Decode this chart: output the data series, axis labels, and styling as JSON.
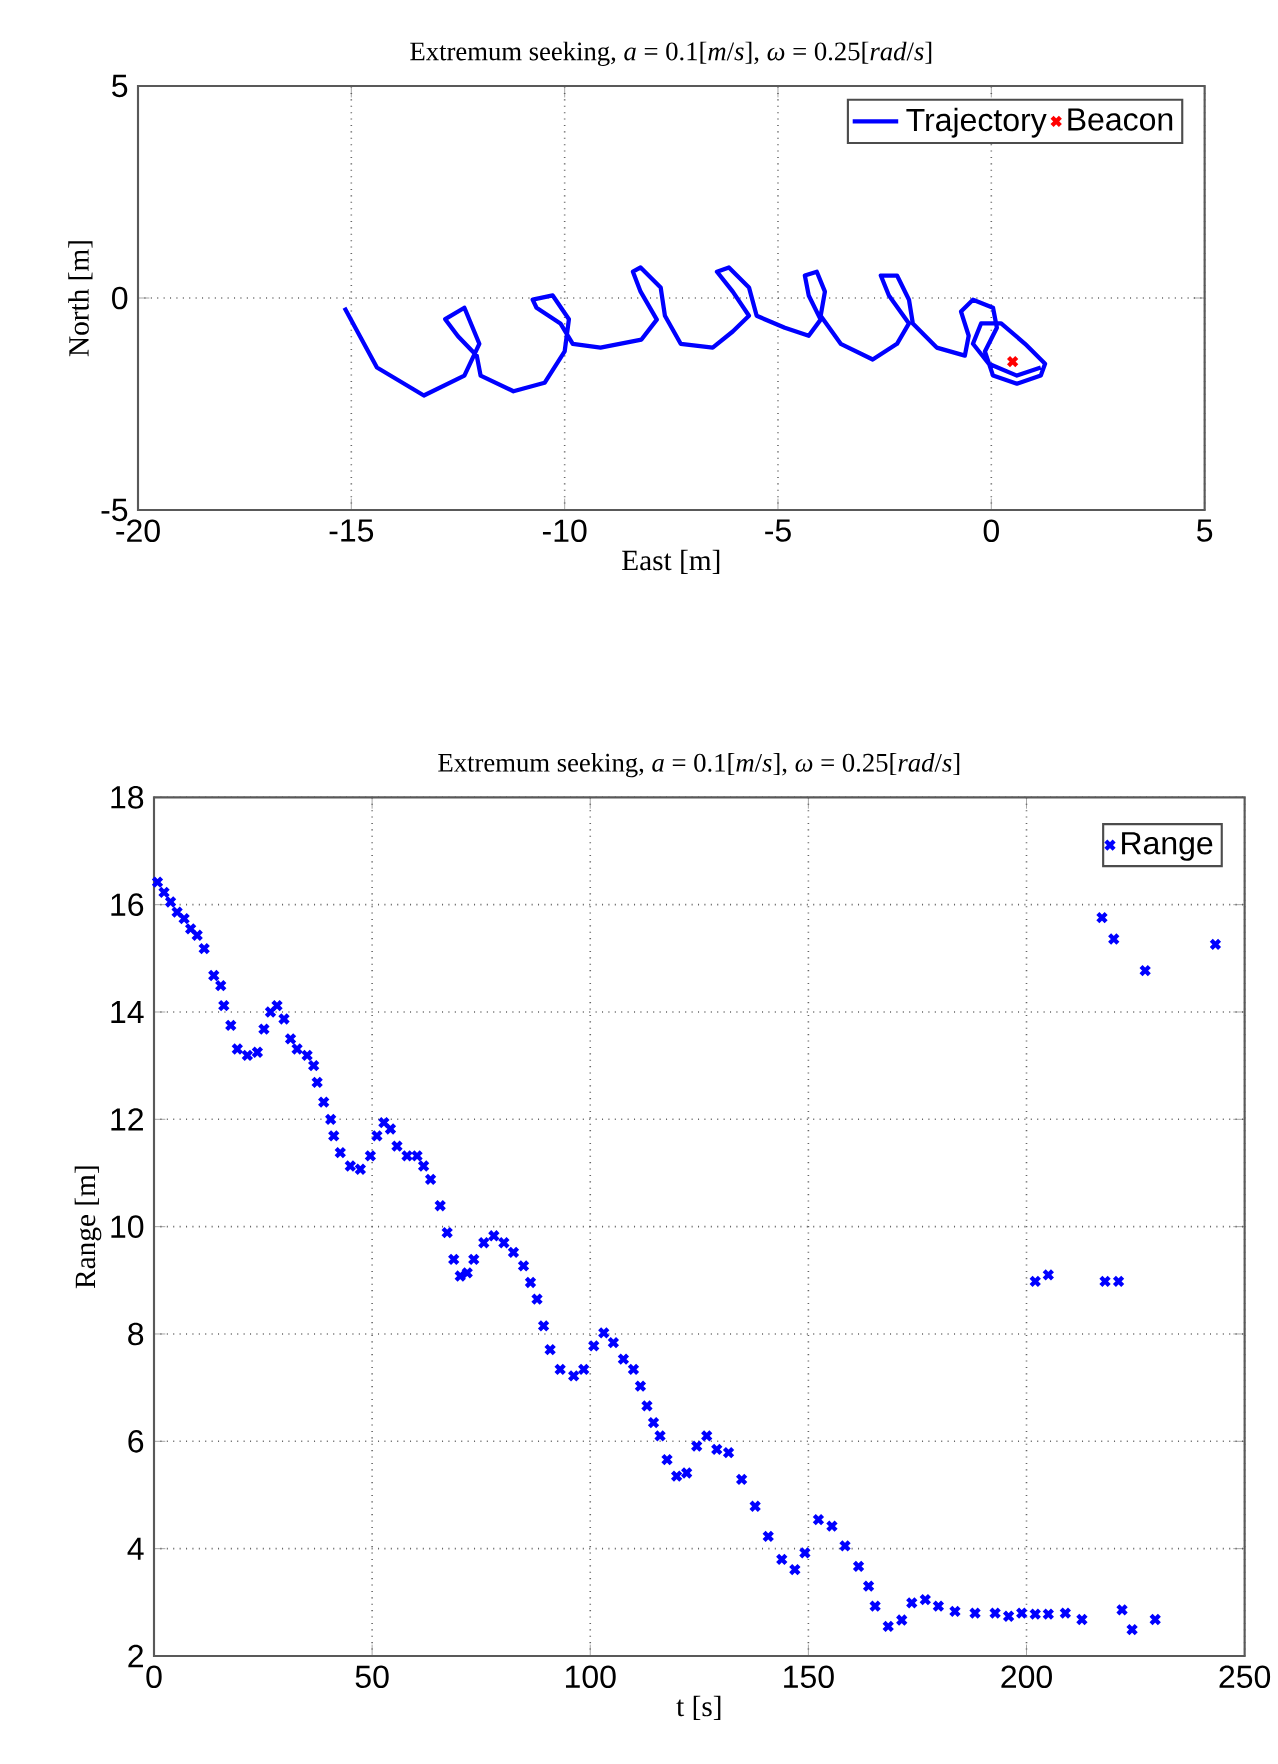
{
  "chart_data": [
    {
      "type": "line",
      "title": "Extremum seeking, *a* = 0.1[*m*/*s*], *ω* = 0.25[*rad*/*s*]",
      "xlabel": "East [m]",
      "ylabel": "North [m]",
      "xlim": [
        -20,
        5
      ],
      "ylim": [
        -5,
        5
      ],
      "xticks": [
        -20,
        -15,
        -10,
        -5,
        0,
        5
      ],
      "yticks": [
        -5,
        0,
        5
      ],
      "grid": true,
      "legend": "top right",
      "series": [
        {
          "name": "Trajectory",
          "color": "#0000ff",
          "marker": "none",
          "x": [
            -15.16,
            -14.4,
            -13.3,
            -12.35,
            -12.0,
            -12.35,
            -12.8,
            -12.5,
            -12.06,
            -11.97,
            -11.2,
            -10.47,
            -10.0,
            -9.9,
            -10.28,
            -10.75,
            -10.66,
            -10.1,
            -9.81,
            -9.16,
            -8.2,
            -7.84,
            -8.22,
            -8.4,
            -8.22,
            -7.75,
            -7.65,
            -7.28,
            -6.53,
            -6.06,
            -5.68,
            -6.06,
            -6.43,
            -6.15,
            -5.68,
            -5.5,
            -4.84,
            -4.28,
            -4.0,
            -4.28,
            -4.37,
            -4.09,
            -3.9,
            -4.0,
            -3.53,
            -2.78,
            -2.21,
            -1.93,
            -2.4,
            -2.59,
            -2.21,
            -1.93,
            -1.84,
            -1.28,
            -0.62,
            -0.53,
            -0.71,
            -0.43,
            0.04,
            0.13,
            -0.15,
            0.04,
            0.6,
            1.16,
            1.26,
            0.79,
            0.23,
            -0.24,
            -0.43,
            -0.06,
            0.6,
            1.16
          ],
          "values": [
            -0.23,
            -1.64,
            -2.3,
            -1.83,
            -1.08,
            -0.23,
            -0.5,
            -0.9,
            -1.36,
            -1.83,
            -2.2,
            -2.0,
            -1.26,
            -0.5,
            0.06,
            -0.04,
            -0.23,
            -0.6,
            -1.08,
            -1.17,
            -0.98,
            -0.51,
            0.15,
            0.62,
            0.72,
            0.25,
            -0.42,
            -1.08,
            -1.17,
            -0.79,
            -0.42,
            0.15,
            0.62,
            0.72,
            0.25,
            -0.42,
            -0.7,
            -0.89,
            -0.51,
            0.06,
            0.53,
            0.62,
            0.15,
            -0.42,
            -1.08,
            -1.45,
            -1.08,
            -0.6,
            0.06,
            0.53,
            0.53,
            -0.04,
            -0.6,
            -1.17,
            -1.36,
            -0.89,
            -0.32,
            -0.04,
            -0.23,
            -0.7,
            -1.26,
            -1.83,
            -2.02,
            -1.83,
            -1.55,
            -1.08,
            -0.6,
            -0.6,
            -1.08,
            -1.55,
            -1.83,
            -1.64
          ]
        },
        {
          "name": "Beacon",
          "type": "scatter",
          "color": "#ff0000",
          "marker": "cross",
          "x": [
            0.5
          ],
          "values": [
            -1.5
          ]
        }
      ]
    },
    {
      "type": "scatter",
      "title": "Extremum seeking, *a* = 0.1[*m*/*s*], *ω* = 0.25[*rad*/*s*]",
      "xlabel": "t [s]",
      "ylabel": "Range [m]",
      "xlim": [
        0,
        250
      ],
      "ylim": [
        2,
        18
      ],
      "xticks": [
        0,
        50,
        100,
        150,
        200,
        250
      ],
      "yticks": [
        2,
        4,
        6,
        8,
        10,
        12,
        14,
        16,
        18
      ],
      "grid": true,
      "legend": "top right",
      "series": [
        {
          "name": "Range",
          "color": "#0000ff",
          "marker": "cross",
          "x": [
            0.8,
            2.3,
            3.8,
            5.3,
            6.9,
            8.4,
            9.9,
            11.5,
            13.7,
            15.3,
            16.0,
            17.6,
            19.1,
            21.4,
            23.7,
            25.2,
            26.7,
            28.2,
            29.8,
            31.3,
            32.8,
            35.1,
            36.6,
            37.4,
            38.9,
            40.5,
            41.2,
            42.7,
            45.0,
            47.3,
            49.6,
            51.1,
            52.7,
            54.2,
            55.7,
            58.0,
            60.3,
            61.8,
            63.4,
            65.6,
            67.2,
            68.7,
            70.2,
            71.8,
            73.3,
            75.6,
            77.9,
            80.2,
            82.4,
            84.7,
            86.3,
            87.8,
            89.3,
            90.8,
            93.1,
            96.2,
            98.5,
            100.8,
            103.1,
            105.3,
            107.6,
            109.9,
            111.5,
            113.0,
            114.5,
            116.0,
            117.6,
            119.8,
            122.1,
            124.4,
            126.7,
            129.0,
            131.7,
            134.7,
            137.8,
            140.8,
            143.9,
            146.9,
            149.2,
            152.3,
            155.4,
            158.4,
            161.5,
            163.8,
            165.3,
            168.3,
            171.4,
            173.7,
            176.8,
            179.8,
            183.6,
            188.2,
            192.8,
            195.9,
            198.9,
            202.0,
            205.0,
            208.9,
            212.7,
            221.9,
            224.2,
            229.5,
            202.0,
            205.0,
            218.0,
            221.1,
            217.3,
            220.0,
            227.2,
            243.3
          ],
          "values": [
            16.42,
            16.23,
            16.05,
            15.86,
            15.74,
            15.55,
            15.43,
            15.18,
            14.68,
            14.49,
            14.12,
            13.75,
            13.31,
            13.19,
            13.25,
            13.68,
            14.0,
            14.12,
            13.87,
            13.5,
            13.31,
            13.19,
            13.0,
            12.69,
            12.32,
            12.0,
            11.69,
            11.38,
            11.13,
            11.07,
            11.32,
            11.69,
            11.94,
            11.82,
            11.5,
            11.32,
            11.32,
            11.13,
            10.88,
            10.39,
            9.89,
            9.39,
            9.08,
            9.14,
            9.39,
            9.7,
            9.83,
            9.7,
            9.52,
            9.27,
            8.96,
            8.65,
            8.15,
            7.71,
            7.34,
            7.22,
            7.34,
            7.78,
            8.02,
            7.84,
            7.53,
            7.34,
            7.03,
            6.66,
            6.35,
            6.1,
            5.66,
            5.35,
            5.41,
            5.91,
            6.1,
            5.85,
            5.79,
            5.29,
            4.79,
            4.23,
            3.8,
            3.61,
            3.92,
            4.54,
            4.42,
            4.05,
            3.67,
            3.3,
            2.93,
            2.55,
            2.67,
            2.99,
            3.05,
            2.93,
            2.83,
            2.8,
            2.8,
            2.74,
            2.8,
            2.78,
            2.78,
            2.8,
            2.68,
            2.86,
            2.49,
            2.68,
            8.98,
            9.1,
            8.98,
            8.98,
            15.76,
            15.36,
            14.77,
            15.26
          ]
        }
      ]
    }
  ]
}
